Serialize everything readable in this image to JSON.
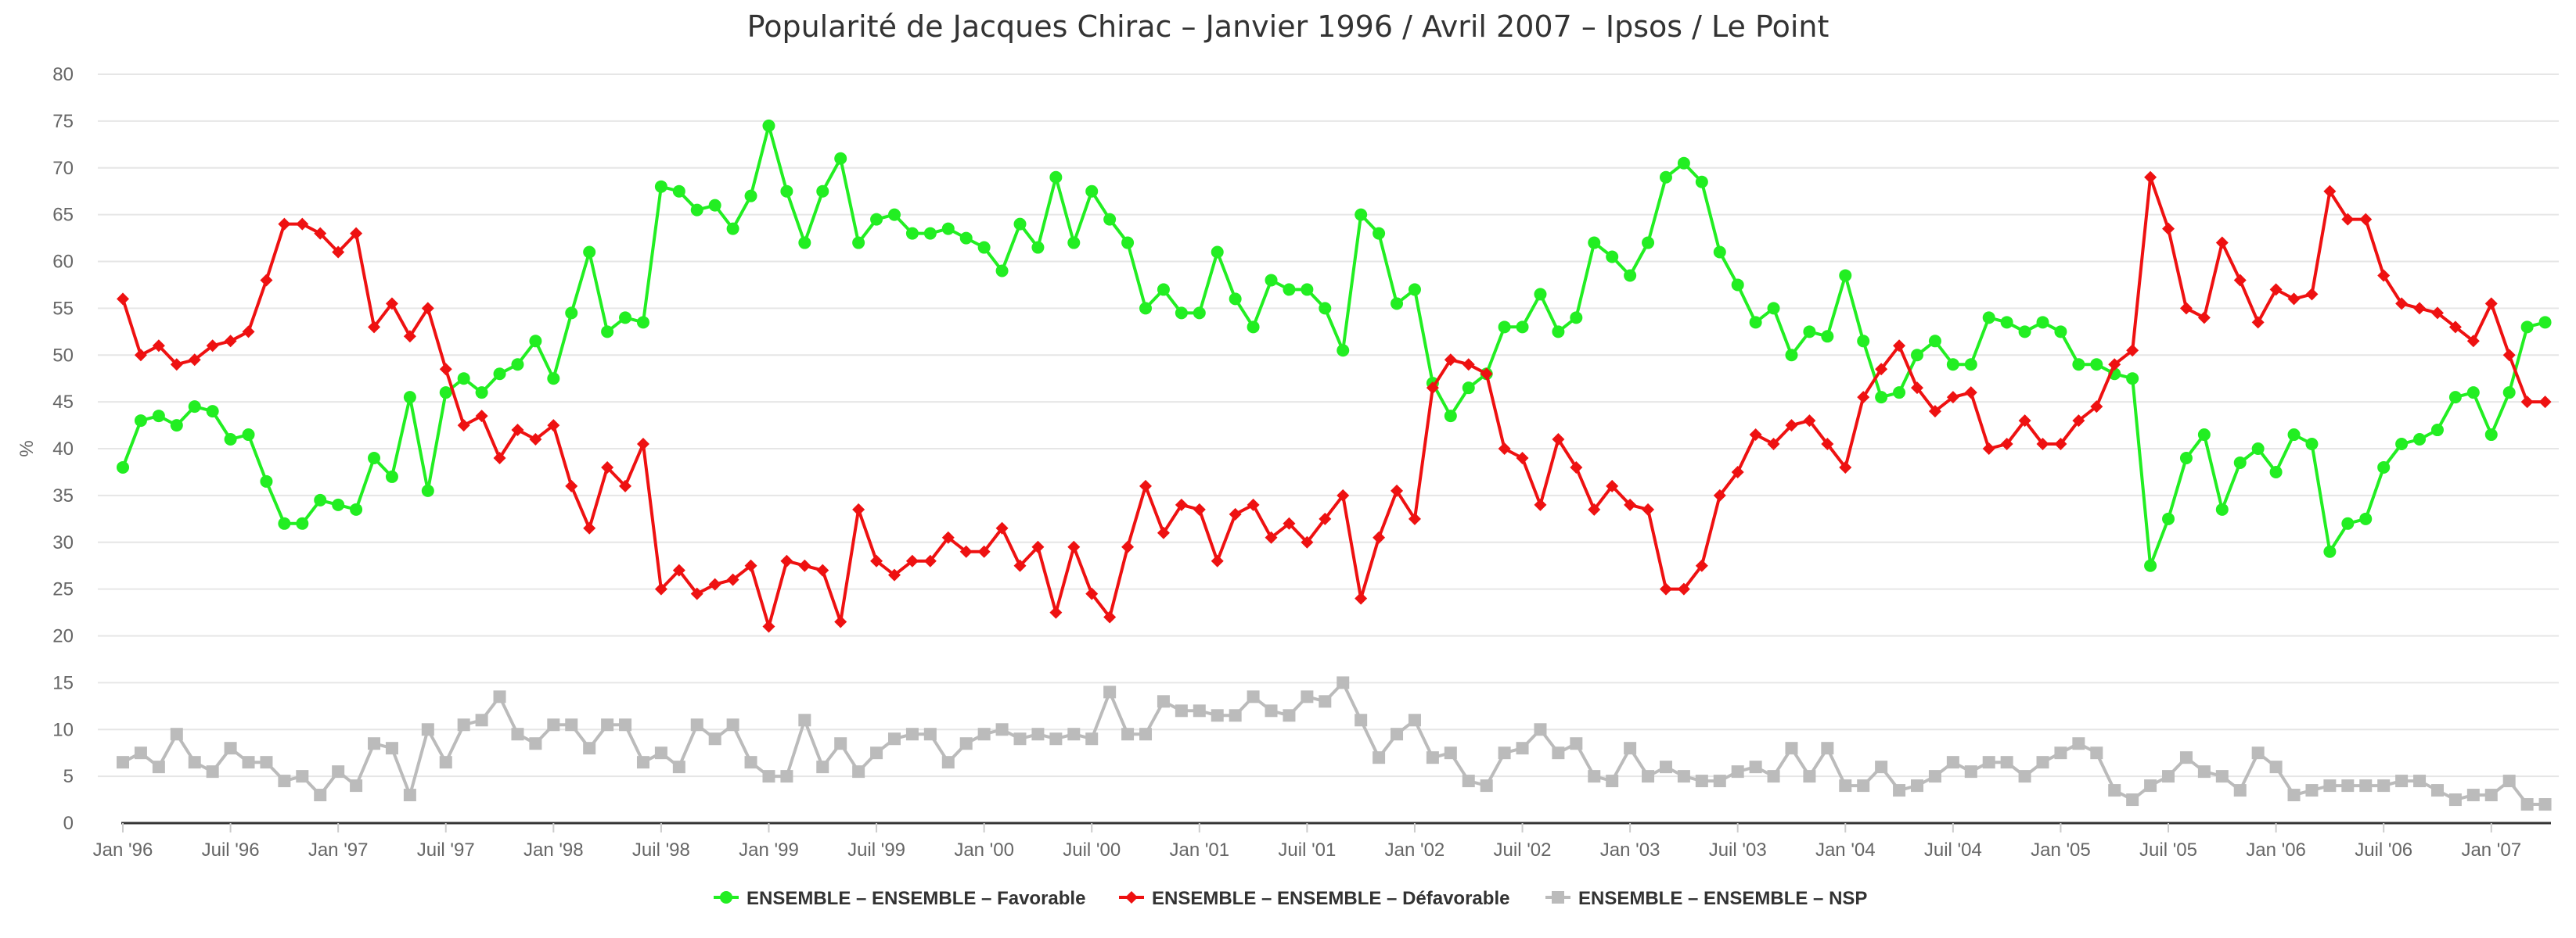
{
  "chart_data": {
    "type": "line",
    "title": "Popularité de Jacques Chirac – Janvier 1996 / Avril 2007 – Ipsos / Le Point",
    "xlabel": "",
    "ylabel": "%",
    "ylim": [
      0,
      80
    ],
    "yticks": [
      0,
      5,
      10,
      15,
      20,
      25,
      30,
      35,
      40,
      45,
      50,
      55,
      60,
      65,
      70,
      75,
      80
    ],
    "xticks": [
      {
        "x": 0,
        "label": "Jan '96"
      },
      {
        "x": 6,
        "label": "Juil '96"
      },
      {
        "x": 12,
        "label": "Jan '97"
      },
      {
        "x": 18,
        "label": "Juil '97"
      },
      {
        "x": 24,
        "label": "Jan '98"
      },
      {
        "x": 30,
        "label": "Juil '98"
      },
      {
        "x": 36,
        "label": "Jan '99"
      },
      {
        "x": 42,
        "label": "Juil '99"
      },
      {
        "x": 48,
        "label": "Jan '00"
      },
      {
        "x": 54,
        "label": "Juil '00"
      },
      {
        "x": 60,
        "label": "Jan '01"
      },
      {
        "x": 66,
        "label": "Juil '01"
      },
      {
        "x": 72,
        "label": "Jan '02"
      },
      {
        "x": 78,
        "label": "Juil '02"
      },
      {
        "x": 84,
        "label": "Jan '03"
      },
      {
        "x": 90,
        "label": "Juil '03"
      },
      {
        "x": 96,
        "label": "Jan '04"
      },
      {
        "x": 102,
        "label": "Juil '04"
      },
      {
        "x": 108,
        "label": "Jan '05"
      },
      {
        "x": 114,
        "label": "Juil '05"
      },
      {
        "x": 120,
        "label": "Jan '06"
      },
      {
        "x": 126,
        "label": "Juil '06"
      },
      {
        "x": 132,
        "label": "Jan '07"
      }
    ],
    "grid": true,
    "legend_position": "bottom-center",
    "series": [
      {
        "name": "ENSEMBLE – ENSEMBLE – Favorable",
        "color": "#22ee22",
        "marker": "circle",
        "values": [
          38,
          43,
          43.5,
          42.5,
          44.5,
          44,
          41,
          41.5,
          36.5,
          32,
          32,
          34.5,
          34,
          33.5,
          39,
          37,
          45.5,
          35.5,
          46,
          47.5,
          46,
          48,
          49,
          51.5,
          47.5,
          54.5,
          61,
          52.5,
          54,
          53.5,
          68,
          67.5,
          65.5,
          66,
          63.5,
          67,
          74.5,
          67.5,
          62,
          67.5,
          71,
          62,
          64.5,
          65,
          63,
          63,
          63.5,
          62.5,
          61.5,
          59,
          64,
          61.5,
          69,
          62,
          67.5,
          64.5,
          62,
          55,
          57,
          54.5,
          54.5,
          61,
          56,
          53,
          58,
          57,
          57,
          55,
          50.5,
          65,
          63,
          55.5,
          57,
          47,
          43.5,
          46.5,
          48,
          53,
          53,
          56.5,
          52.5,
          54,
          62,
          60.5,
          58.5,
          62,
          69,
          70.5,
          68.5,
          61,
          57.5,
          53.5,
          55,
          50,
          52.5,
          52,
          58.5,
          51.5,
          45.5,
          46,
          50,
          51.5,
          49,
          49,
          54,
          53.5,
          52.5,
          53.5,
          52.5,
          49,
          49,
          48,
          47.5,
          27.5,
          32.5,
          39,
          41.5,
          33.5,
          38.5,
          40,
          37.5,
          41.5,
          40.5,
          29,
          32,
          32.5,
          38,
          40.5,
          41,
          42,
          45.5,
          46,
          41.5,
          46,
          53,
          53.5
        ]
      },
      {
        "name": "ENSEMBLE – ENSEMBLE – Défavorable",
        "color": "#ee1111",
        "marker": "diamond",
        "values": [
          56,
          50,
          51,
          49,
          49.5,
          51,
          51.5,
          52.5,
          58,
          64,
          64,
          63,
          61,
          63,
          53,
          55.5,
          52,
          55,
          48.5,
          42.5,
          43.5,
          39,
          42,
          41,
          42.5,
          36,
          31.5,
          38,
          36,
          40.5,
          25,
          27,
          24.5,
          25.5,
          26,
          27.5,
          21,
          28,
          27.5,
          27,
          21.5,
          33.5,
          28,
          26.5,
          28,
          28,
          30.5,
          29,
          29,
          31.5,
          27.5,
          29.5,
          22.5,
          29.5,
          24.5,
          22,
          29.5,
          36,
          31,
          34,
          33.5,
          28,
          33,
          34,
          30.5,
          32,
          30,
          32.5,
          35,
          24,
          30.5,
          35.5,
          32.5,
          46.5,
          49.5,
          49,
          48,
          40,
          39,
          34,
          41,
          38,
          33.5,
          36,
          34,
          33.5,
          25,
          25,
          27.5,
          35,
          37.5,
          41.5,
          40.5,
          42.5,
          43,
          40.5,
          38,
          45.5,
          48.5,
          51,
          46.5,
          44,
          45.5,
          46,
          40,
          40.5,
          43,
          40.5,
          40.5,
          43,
          44.5,
          49,
          50.5,
          69,
          63.5,
          55,
          54,
          62,
          58,
          53.5,
          57,
          56,
          56.5,
          67.5,
          64.5,
          64.5,
          58.5,
          55.5,
          55,
          54.5,
          53,
          51.5,
          55.5,
          50,
          45,
          45
        ]
      },
      {
        "name": "ENSEMBLE – ENSEMBLE – NSP",
        "color": "#bbbbbb",
        "marker": "square",
        "values": [
          6.5,
          7.5,
          6,
          9.5,
          6.5,
          5.5,
          8,
          6.5,
          6.5,
          4.5,
          5,
          3,
          5.5,
          4,
          8.5,
          8,
          3,
          10,
          6.5,
          10.5,
          11,
          13.5,
          9.5,
          8.5,
          10.5,
          10.5,
          8,
          10.5,
          10.5,
          6.5,
          7.5,
          6,
          10.5,
          9,
          10.5,
          6.5,
          5,
          5,
          11,
          6,
          8.5,
          5.5,
          7.5,
          9,
          9.5,
          9.5,
          6.5,
          8.5,
          9.5,
          10,
          9,
          9.5,
          9,
          9.5,
          9,
          14,
          9.5,
          9.5,
          13,
          12,
          12,
          11.5,
          11.5,
          13.5,
          12,
          11.5,
          13.5,
          13,
          15,
          11,
          7,
          9.5,
          11,
          7,
          7.5,
          4.5,
          4,
          7.5,
          8,
          10,
          7.5,
          8.5,
          5,
          4.5,
          8,
          5,
          6,
          5,
          4.5,
          4.5,
          5.5,
          6,
          5,
          8,
          5,
          8,
          4,
          4,
          6,
          3.5,
          4,
          5,
          6.5,
          5.5,
          6.5,
          6.5,
          5,
          6.5,
          7.5,
          8.5,
          7.5,
          3.5,
          2.5,
          4,
          5,
          7,
          5.5,
          5,
          3.5,
          7.5,
          6,
          3,
          3.5,
          4,
          4,
          4,
          4,
          4.5,
          4.5,
          3.5,
          2.5,
          3,
          3,
          4.5,
          2,
          2
        ]
      }
    ]
  }
}
